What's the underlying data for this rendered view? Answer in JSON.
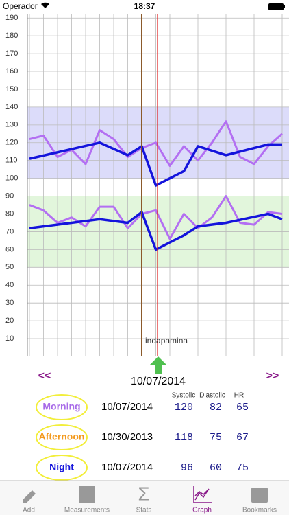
{
  "status_bar": {
    "carrier": "Operador",
    "time": "18:37"
  },
  "chart_data": {
    "type": "line",
    "xlim": [
      0,
      18
    ],
    "ylim": [
      0,
      192.4
    ],
    "yticks": [
      10,
      20,
      30,
      40,
      50,
      60,
      70,
      80,
      90,
      100,
      110,
      120,
      130,
      140,
      150,
      160,
      170,
      180,
      190
    ],
    "grid": true,
    "bands": [
      {
        "range": [
          100,
          140
        ],
        "color": "#dcdcfa"
      },
      {
        "range": [
          50,
          90
        ],
        "color": "#e2f6dc"
      }
    ],
    "annotation": "indapamina",
    "series": [
      {
        "color": "#b36ff2",
        "x": [
          0,
          1,
          2,
          3,
          4,
          5,
          6,
          7,
          8,
          9,
          10,
          11,
          12,
          13,
          14,
          15,
          16,
          17,
          18
        ],
        "values": [
          122,
          124,
          112,
          116,
          108,
          127,
          122,
          112,
          117,
          120,
          107,
          118,
          110,
          120,
          132,
          112,
          108,
          118,
          125
        ]
      },
      {
        "color": "#b36ff2",
        "x": [
          0,
          1,
          2,
          3,
          4,
          5,
          6,
          7,
          8,
          9,
          10,
          11,
          12,
          13,
          14,
          15,
          16,
          17,
          18
        ],
        "values": [
          85,
          82,
          75,
          78,
          73,
          84,
          84,
          72,
          80,
          82,
          66,
          80,
          72,
          78,
          90,
          75,
          74,
          81,
          80
        ]
      },
      {
        "color": "#1414dc",
        "x": [
          0,
          5,
          7,
          8,
          9,
          11,
          12,
          14,
          17,
          18
        ],
        "values": [
          111,
          120,
          113,
          118,
          96,
          104,
          118,
          113,
          119,
          119
        ]
      },
      {
        "color": "#1414dc",
        "x": [
          0,
          5,
          7,
          8,
          9,
          11,
          12,
          14,
          17,
          18
        ],
        "values": [
          72,
          77,
          75,
          81,
          60,
          68,
          73,
          75,
          80,
          77
        ]
      }
    ]
  },
  "navigation": {
    "prev": "<<",
    "date": "10/07/2014",
    "next": ">>"
  },
  "table": {
    "headers": [
      "Systolic",
      "Diastolic",
      "HR"
    ],
    "rows": [
      {
        "period": "Morning",
        "date": "10/07/2014",
        "values": [
          "120",
          "82",
          "65"
        ]
      },
      {
        "period": "Afternoon",
        "date": "10/30/2013",
        "values": [
          "118",
          "75",
          "67"
        ]
      },
      {
        "period": "Night",
        "date": "10/07/2014",
        "values": [
          "96",
          "60",
          "75"
        ]
      }
    ]
  },
  "tab_bar": {
    "items": [
      "Add",
      "Measurements",
      "Stats",
      "Graph",
      "Bookmarks"
    ]
  }
}
